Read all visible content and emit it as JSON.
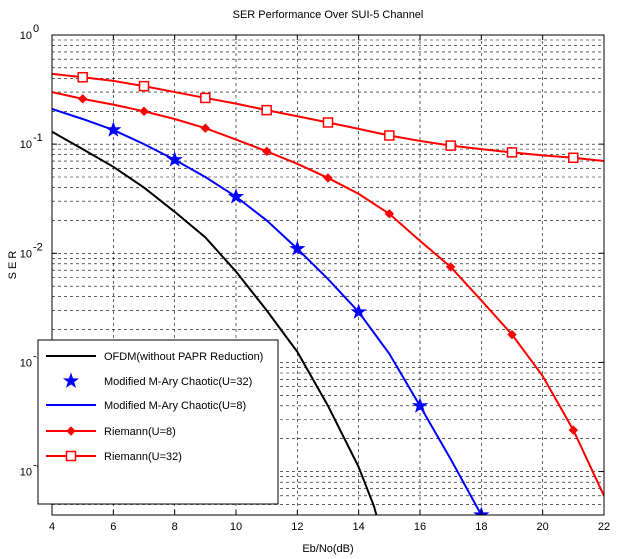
{
  "chart_data": {
    "type": "line",
    "title": "SER Performance Over SUI-5 Channel",
    "xlabel": "Eb/No(dB)",
    "ylabel": "S E R",
    "x_scale": "linear",
    "y_scale": "log",
    "xlim": [
      4,
      22
    ],
    "ylim": [
      4e-05,
      1
    ],
    "x_ticks": [
      4,
      6,
      8,
      10,
      12,
      14,
      16,
      18,
      20,
      22
    ],
    "x_tick_labels": [
      "4",
      "6",
      "8",
      "10",
      "12",
      "14",
      "16",
      "18",
      "20",
      "22"
    ],
    "y_ticks": [
      0.0001,
      0.001,
      0.01,
      0.1,
      1
    ],
    "y_tick_labels": [
      {
        "base": "10",
        "exp": "-4"
      },
      {
        "base": "10",
        "exp": "-3"
      },
      {
        "base": "10",
        "exp": "-2"
      },
      {
        "base": "10",
        "exp": "-1"
      },
      {
        "base": "10",
        "exp": "0"
      }
    ],
    "grid": true,
    "legend_position": "bottom-left",
    "series": [
      {
        "name": "OFDM(without PAPR Reduction)",
        "color": "#000000",
        "marker": "none",
        "x": [
          4,
          5,
          6,
          7,
          8,
          9,
          10,
          11,
          12,
          13,
          14,
          14.5,
          14.7
        ],
        "y": [
          0.13,
          0.09,
          0.062,
          0.04,
          0.024,
          0.014,
          0.0068,
          0.003,
          0.00125,
          0.0004,
          0.00011,
          4.8e-05,
          3e-05
        ]
      },
      {
        "name": "Modified M-Ary Chaotic(U=32)",
        "color": "#0000ff",
        "marker": "star",
        "x": [
          6,
          8,
          10,
          12,
          14,
          16,
          18
        ],
        "y": [
          0.135,
          0.072,
          0.033,
          0.011,
          0.0029,
          0.0004,
          4e-05
        ]
      },
      {
        "name": "Modified M-Ary Chaotic(U=8)",
        "color": "#0000ff",
        "marker": "none",
        "x": [
          4,
          5,
          6,
          7,
          8,
          9,
          10,
          11,
          12,
          13,
          14,
          15,
          16,
          17,
          18
        ],
        "y": [
          0.21,
          0.17,
          0.135,
          0.1,
          0.072,
          0.05,
          0.033,
          0.02,
          0.011,
          0.0058,
          0.0029,
          0.0012,
          0.0004,
          0.00013,
          4e-05
        ]
      },
      {
        "name": "Riemann(U=8)",
        "color": "#ff0000",
        "marker": "diamond",
        "x": [
          4,
          5,
          6,
          7,
          8,
          9,
          10,
          11,
          12,
          13,
          14,
          15,
          16,
          17,
          18,
          19,
          20,
          21,
          22
        ],
        "y": [
          0.3,
          0.26,
          0.23,
          0.2,
          0.17,
          0.14,
          0.11,
          0.086,
          0.066,
          0.049,
          0.035,
          0.023,
          0.013,
          0.0075,
          0.0037,
          0.0018,
          0.00075,
          0.00024,
          6e-05
        ],
        "marker_x": [
          5,
          7,
          9,
          11,
          13,
          15,
          17,
          19,
          21
        ]
      },
      {
        "name": "Riemann(U=32)",
        "color": "#ff0000",
        "marker": "square",
        "x": [
          4,
          5,
          6,
          7,
          8,
          9,
          10,
          11,
          12,
          13,
          14,
          15,
          16,
          17,
          18,
          19,
          20,
          21,
          22
        ],
        "y": [
          0.44,
          0.41,
          0.38,
          0.34,
          0.3,
          0.265,
          0.235,
          0.205,
          0.18,
          0.158,
          0.138,
          0.12,
          0.107,
          0.097,
          0.09,
          0.084,
          0.079,
          0.075,
          0.07
        ],
        "marker_x": [
          5,
          7,
          9,
          11,
          13,
          15,
          17,
          19,
          21
        ]
      }
    ]
  }
}
